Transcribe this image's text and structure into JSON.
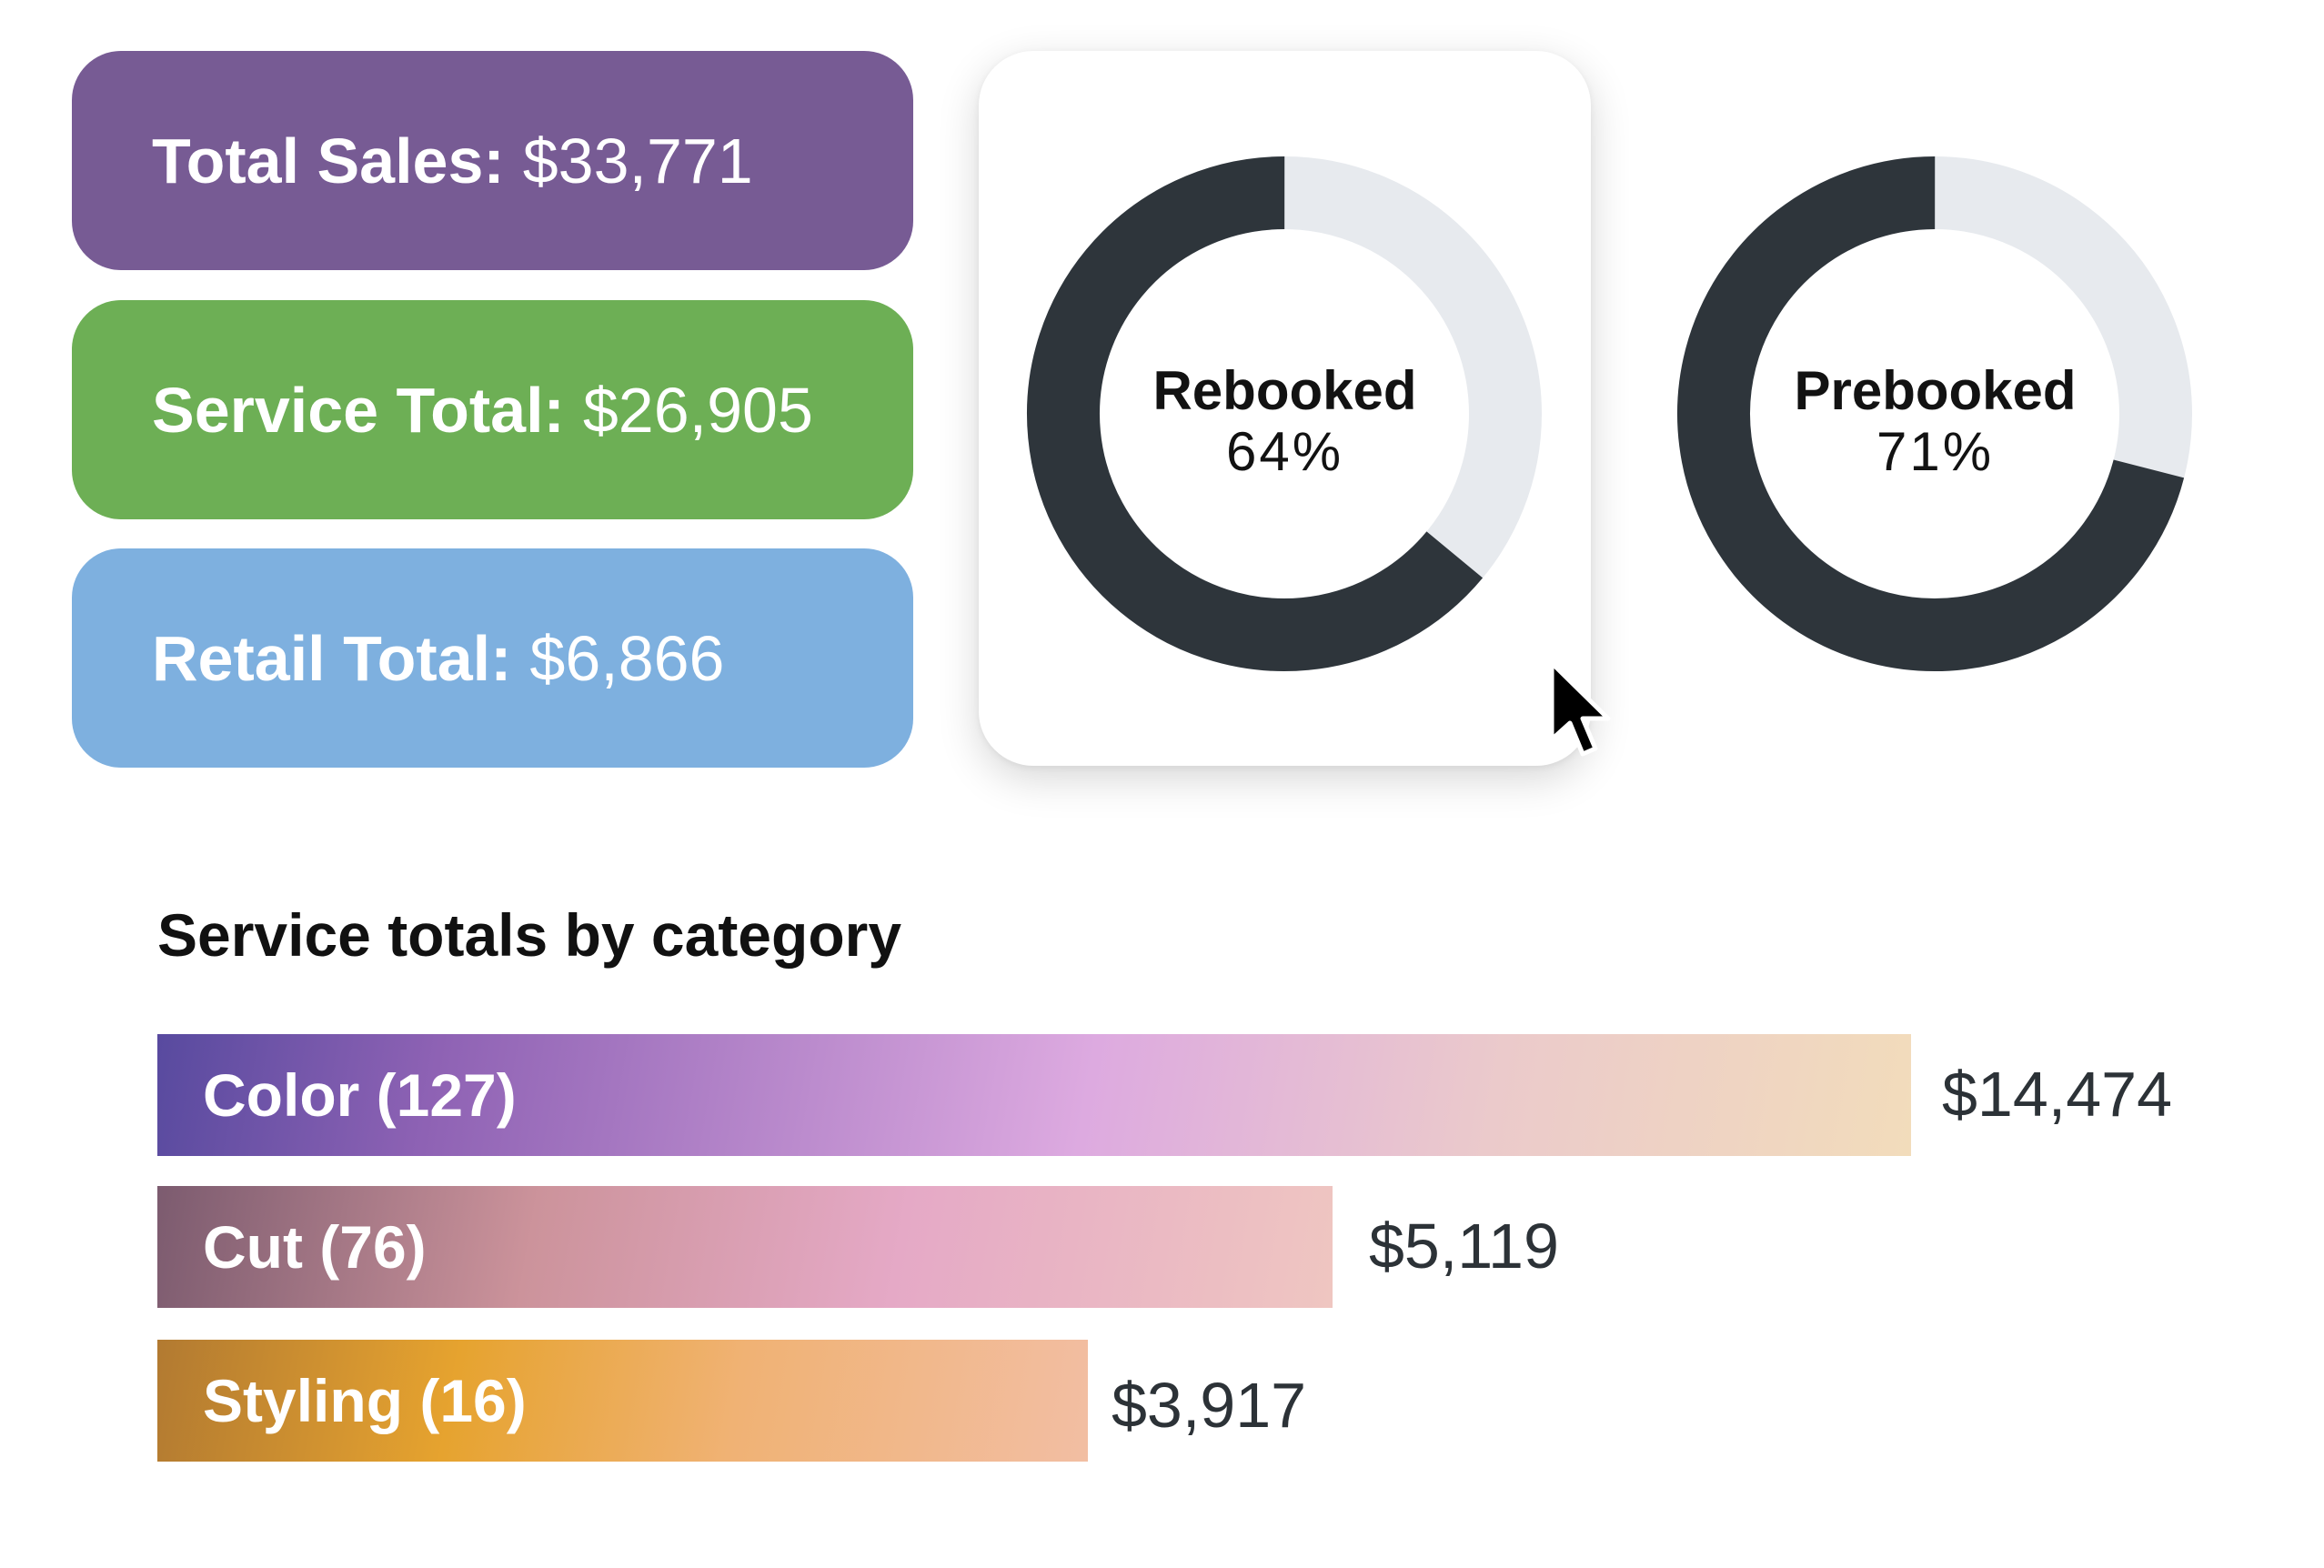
{
  "summary": {
    "total_sales": {
      "label": "Total Sales:",
      "value": "$33,771",
      "color": "#775b94"
    },
    "service_total": {
      "label": "Service Total:",
      "value": "$26,905",
      "color": "#6daf55"
    },
    "retail_total": {
      "label": "Retail Total:",
      "value": "$6,866",
      "color": "#7eb0df"
    }
  },
  "donuts": [
    {
      "title": "Rebooked",
      "percent_label": "64%",
      "percent": 64,
      "fill_color": "#2e353b",
      "track_color": "#e7eaee"
    },
    {
      "title": "Prebooked",
      "percent_label": "71%",
      "percent": 71,
      "fill_color": "#2e353b",
      "track_color": "#e7eaee"
    }
  ],
  "chart_data": {
    "type": "bar",
    "orientation": "horizontal",
    "title": "Service totals by category",
    "categories": [
      "Color (127)",
      "Cut (76)",
      "Styling (16)"
    ],
    "values": [
      14474,
      5119,
      3917
    ],
    "value_labels": [
      "$14,474",
      "$5,119",
      "$3,917"
    ],
    "xlabel": "",
    "ylabel": ""
  },
  "cursor": {
    "icon": "arrow-cursor-icon"
  }
}
